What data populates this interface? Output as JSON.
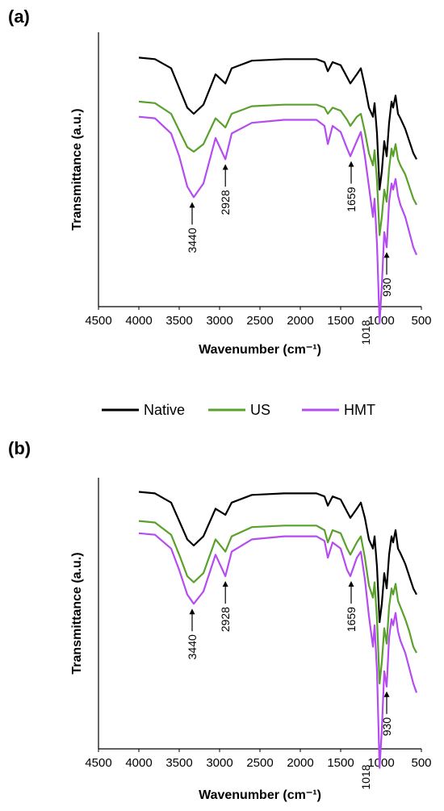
{
  "legend": [
    {
      "name": "Native",
      "color": "#000000"
    },
    {
      "name": "US",
      "color": "#5aa02c"
    },
    {
      "name": "HMT",
      "color": "#b44cf0"
    }
  ],
  "chart_data": [
    {
      "panel": "(a)",
      "type": "line",
      "xlabel": "Wavenumber (cm⁻¹)",
      "ylabel": "Transmittance (a.u.)",
      "x_ticks": [
        4500,
        4000,
        3500,
        3000,
        2500,
        2000,
        1500,
        1000,
        500
      ],
      "xlim": [
        4500,
        500
      ],
      "x_reversed": true,
      "y_ticks_shown": false,
      "grid": false,
      "series": [
        {
          "name": "Native",
          "color": "#000000",
          "x": [
            4000,
            3800,
            3600,
            3500,
            3400,
            3320,
            3200,
            3050,
            2928,
            2850,
            2600,
            2200,
            1800,
            1700,
            1659,
            1600,
            1500,
            1420,
            1380,
            1300,
            1250,
            1200,
            1150,
            1100,
            1080,
            1050,
            1018,
            990,
            960,
            930,
            900,
            870,
            850,
            820,
            790,
            760,
            700,
            650,
            600,
            560
          ],
          "y": [
            95,
            94,
            88,
            75,
            62,
            58,
            64,
            84,
            78,
            88,
            93,
            94,
            94,
            92,
            86,
            92,
            90,
            82,
            78,
            84,
            88,
            76,
            62,
            56,
            65,
            45,
            8,
            20,
            40,
            30,
            52,
            66,
            62,
            70,
            58,
            55,
            48,
            40,
            32,
            28
          ]
        },
        {
          "name": "US",
          "color": "#5aa02c",
          "x": [
            4000,
            3800,
            3600,
            3500,
            3400,
            3320,
            3200,
            3050,
            2928,
            2850,
            2600,
            2200,
            1800,
            1700,
            1659,
            1600,
            1500,
            1420,
            1380,
            1300,
            1250,
            1200,
            1150,
            1100,
            1080,
            1050,
            1018,
            990,
            960,
            930,
            900,
            870,
            850,
            820,
            790,
            760,
            700,
            650,
            600,
            560
          ],
          "y": [
            66,
            65,
            58,
            47,
            36,
            33,
            38,
            55,
            49,
            58,
            63,
            64,
            64,
            62,
            58,
            62,
            60,
            54,
            50,
            56,
            58,
            46,
            32,
            24,
            34,
            14,
            -22,
            -10,
            8,
            0,
            22,
            35,
            30,
            38,
            28,
            24,
            18,
            10,
            2,
            -2
          ]
        },
        {
          "name": "HMT",
          "color": "#b44cf0",
          "x": [
            4000,
            3800,
            3600,
            3500,
            3400,
            3320,
            3200,
            3050,
            2928,
            2850,
            2600,
            2200,
            1800,
            1700,
            1659,
            1600,
            1500,
            1420,
            1380,
            1300,
            1250,
            1200,
            1150,
            1100,
            1080,
            1050,
            1018,
            990,
            960,
            930,
            900,
            870,
            850,
            820,
            790,
            760,
            700,
            650,
            600,
            560
          ],
          "y": [
            56,
            55,
            45,
            30,
            10,
            3,
            12,
            42,
            28,
            45,
            52,
            54,
            54,
            50,
            38,
            50,
            46,
            35,
            30,
            40,
            46,
            30,
            10,
            -10,
            2,
            -28,
            -80,
            -55,
            -20,
            -30,
            0,
            12,
            8,
            15,
            4,
            -2,
            -10,
            -20,
            -30,
            -35
          ]
        }
      ],
      "annotations": [
        {
          "label": "3440",
          "x": 3340,
          "arrow": "up"
        },
        {
          "label": "2928",
          "x": 2928,
          "arrow": "up"
        },
        {
          "label": "1659",
          "x": 1370,
          "arrow": "up"
        },
        {
          "label": "930",
          "x": 930,
          "arrow": "up"
        },
        {
          "label": "1018",
          "x": 1018,
          "arrow": "none"
        }
      ]
    },
    {
      "panel": "(b)",
      "type": "line",
      "xlabel": "Wavenumber (cm⁻¹)",
      "ylabel": "Transmittance (a.u.)",
      "x_ticks": [
        4500,
        4000,
        3500,
        3000,
        2500,
        2000,
        1500,
        1000,
        500
      ],
      "xlim": [
        4500,
        500
      ],
      "x_reversed": true,
      "y_ticks_shown": false,
      "grid": false,
      "series": [
        {
          "name": "Native",
          "color": "#000000",
          "x": [
            4000,
            3800,
            3600,
            3500,
            3400,
            3320,
            3200,
            3050,
            2928,
            2850,
            2600,
            2200,
            1800,
            1700,
            1659,
            1600,
            1500,
            1420,
            1380,
            1300,
            1250,
            1200,
            1150,
            1100,
            1080,
            1050,
            1018,
            990,
            960,
            930,
            900,
            870,
            850,
            820,
            790,
            760,
            700,
            650,
            600,
            560
          ],
          "y": [
            95,
            94,
            88,
            76,
            64,
            60,
            66,
            84,
            80,
            88,
            93,
            94,
            94,
            92,
            86,
            92,
            90,
            82,
            78,
            84,
            88,
            78,
            64,
            58,
            66,
            46,
            10,
            22,
            42,
            32,
            54,
            66,
            62,
            70,
            58,
            55,
            48,
            40,
            32,
            28
          ]
        },
        {
          "name": "US",
          "color": "#5aa02c",
          "x": [
            4000,
            3800,
            3600,
            3500,
            3400,
            3320,
            3200,
            3050,
            2928,
            2850,
            2600,
            2200,
            1800,
            1700,
            1659,
            1600,
            1500,
            1420,
            1380,
            1300,
            1250,
            1200,
            1150,
            1100,
            1080,
            1050,
            1018,
            990,
            960,
            930,
            900,
            870,
            850,
            820,
            790,
            760,
            700,
            650,
            600,
            560
          ],
          "y": [
            76,
            75,
            67,
            54,
            40,
            36,
            42,
            64,
            56,
            66,
            72,
            73,
            73,
            70,
            62,
            70,
            68,
            58,
            54,
            62,
            66,
            52,
            34,
            26,
            36,
            12,
            -30,
            -16,
            6,
            -4,
            20,
            32,
            28,
            35,
            24,
            20,
            12,
            4,
            -6,
            -10
          ]
        },
        {
          "name": "HMT",
          "color": "#b44cf0",
          "x": [
            4000,
            3800,
            3600,
            3500,
            3400,
            3320,
            3200,
            3050,
            2928,
            2850,
            2600,
            2200,
            1800,
            1700,
            1659,
            1600,
            1500,
            1420,
            1380,
            1300,
            1250,
            1200,
            1150,
            1100,
            1080,
            1050,
            1018,
            990,
            960,
            930,
            900,
            870,
            850,
            820,
            790,
            760,
            700,
            650,
            600,
            560
          ],
          "y": [
            68,
            67,
            58,
            44,
            28,
            22,
            30,
            54,
            40,
            56,
            64,
            66,
            66,
            63,
            52,
            62,
            58,
            44,
            40,
            52,
            56,
            38,
            14,
            -6,
            8,
            -22,
            -85,
            -60,
            -22,
            -32,
            0,
            12,
            8,
            16,
            4,
            -2,
            -10,
            -20,
            -30,
            -36
          ]
        }
      ],
      "annotations": [
        {
          "label": "3440",
          "x": 3340,
          "arrow": "up"
        },
        {
          "label": "2928",
          "x": 2928,
          "arrow": "up"
        },
        {
          "label": "1659",
          "x": 1370,
          "arrow": "up"
        },
        {
          "label": "930",
          "x": 930,
          "arrow": "up"
        },
        {
          "label": "1018",
          "x": 1018,
          "arrow": "none"
        }
      ]
    }
  ]
}
